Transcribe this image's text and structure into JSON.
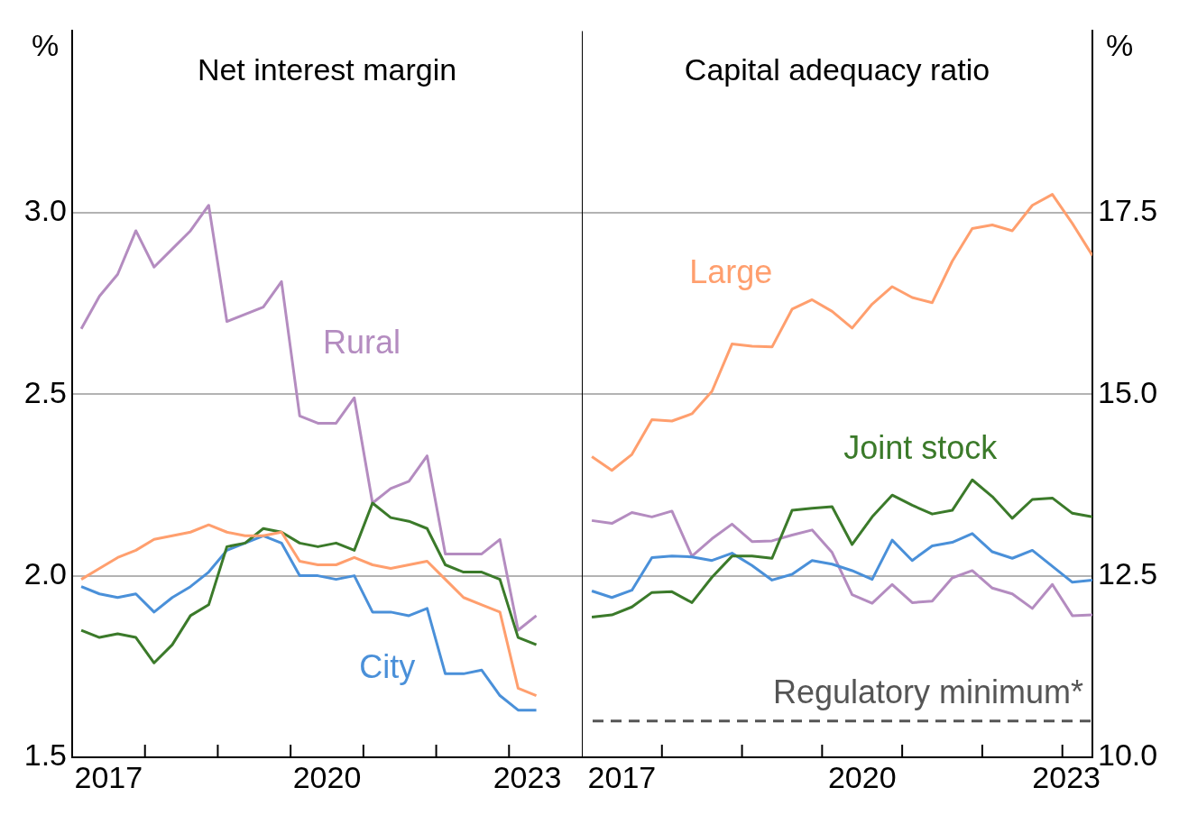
{
  "chart_data": [
    {
      "type": "line",
      "title": "Net interest margin",
      "ylabel": "%",
      "grid": "y",
      "marker": "none",
      "x": [
        2017.125,
        2017.375,
        2017.625,
        2017.875,
        2018.125,
        2018.375,
        2018.625,
        2018.875,
        2019.125,
        2019.375,
        2019.625,
        2019.875,
        2020.125,
        2020.375,
        2020.625,
        2020.875,
        2021.125,
        2021.375,
        2021.625,
        2021.875,
        2022.125,
        2022.375,
        2022.625,
        2022.875,
        2023.125,
        2023.375
      ],
      "xlim": [
        2017,
        2024
      ],
      "xticks": [
        {
          "value": 2017.5,
          "label": "2017"
        },
        {
          "value": 2018,
          "label": null
        },
        {
          "value": 2019,
          "label": null
        },
        {
          "value": 2020,
          "label": null
        },
        {
          "value": 2020.5,
          "label": "2020"
        },
        {
          "value": 2021,
          "label": null
        },
        {
          "value": 2022,
          "label": null
        },
        {
          "value": 2023,
          "label": null
        },
        {
          "value": 2023.25,
          "label": "2023"
        }
      ],
      "ylim": [
        1.5,
        3.5
      ],
      "yticks": [
        1.5,
        {
          "value": 2,
          "label": "2.0"
        },
        2.5,
        {
          "value": 3,
          "label": "3.0"
        }
      ],
      "series": [
        {
          "color": "#ff9f6e",
          "values": [
            1.99,
            2.02,
            2.05,
            2.07,
            2.1,
            2.11,
            2.12,
            2.14,
            2.12,
            2.11,
            2.11,
            2.12,
            2.04,
            2.03,
            2.03,
            2.05,
            2.03,
            2.02,
            2.03,
            2.04,
            1.99,
            1.94,
            1.92,
            1.9,
            1.69,
            1.67
          ]
        },
        {
          "color": "#3b7a2a",
          "values": [
            1.85,
            1.83,
            1.84,
            1.83,
            1.76,
            1.81,
            1.89,
            1.92,
            2.08,
            2.09,
            2.13,
            2.12,
            2.09,
            2.08,
            2.09,
            2.07,
            2.2,
            2.16,
            2.15,
            2.13,
            2.03,
            2.01,
            2.01,
            1.99,
            1.83,
            1.81
          ]
        },
        {
          "name": "City",
          "color": "#4a90d9",
          "values": [
            1.97,
            1.95,
            1.94,
            1.95,
            1.9,
            1.94,
            1.97,
            2.01,
            2.07,
            2.09,
            2.11,
            2.09,
            2.0,
            2.0,
            1.99,
            2.0,
            1.9,
            1.9,
            1.89,
            1.91,
            1.73,
            1.73,
            1.74,
            1.67,
            1.63,
            1.63
          ]
        },
        {
          "name": "Rural",
          "color": "#b48cc0",
          "values": [
            2.68,
            2.77,
            2.83,
            2.95,
            2.85,
            2.9,
            2.95,
            3.02,
            2.7,
            2.72,
            2.74,
            2.81,
            2.44,
            2.42,
            2.42,
            2.49,
            2.2,
            2.24,
            2.26,
            2.33,
            2.06,
            2.06,
            2.06,
            2.1,
            1.85,
            1.89
          ]
        }
      ]
    },
    {
      "type": "line",
      "title": "Capital adequacy ratio",
      "y2label": "%",
      "grid": "y",
      "marker": "none",
      "x": [
        2017.125,
        2017.375,
        2017.625,
        2017.875,
        2018.125,
        2018.375,
        2018.625,
        2018.875,
        2019.125,
        2019.375,
        2019.625,
        2019.875,
        2020.125,
        2020.375,
        2020.625,
        2020.875,
        2021.125,
        2021.375,
        2021.625,
        2021.875,
        2022.125,
        2022.375,
        2022.625,
        2022.875,
        2023.125,
        2023.375
      ],
      "xlim": [
        2017,
        2023.375
      ],
      "xticks": [
        {
          "value": 2017.5,
          "label": "2017"
        },
        {
          "value": 2018,
          "label": null
        },
        {
          "value": 2019,
          "label": null
        },
        {
          "value": 2020,
          "label": null
        },
        {
          "value": 2020.5,
          "label": "2020"
        },
        {
          "value": 2021,
          "label": null
        },
        {
          "value": 2022,
          "label": null
        },
        {
          "value": 2023,
          "label": null
        },
        {
          "value": 2023.05,
          "label": "2023"
        }
      ],
      "y2lim": [
        10,
        20
      ],
      "y2ticks": [
        {
          "value": 10,
          "label": "10.0"
        },
        12.5,
        {
          "value": 15,
          "label": "15.0"
        },
        17.5
      ],
      "ref_lines": [
        {
          "axis": "y2",
          "value": 10.5,
          "label": "Regulatory minimum*",
          "color": "#555555",
          "line_style": "dashed"
        }
      ],
      "series": [
        {
          "name": "Large",
          "axis": "y2",
          "color": "#ff9f6e",
          "values": [
            14.14,
            13.95,
            14.17,
            14.65,
            14.63,
            14.73,
            15.04,
            15.69,
            15.66,
            15.65,
            16.17,
            16.3,
            16.14,
            15.91,
            16.24,
            16.48,
            16.33,
            16.26,
            16.83,
            17.28,
            17.33,
            17.25,
            17.6,
            17.75,
            17.35,
            16.91
          ]
        },
        {
          "name": "Joint stock",
          "axis": "y2",
          "color": "#3b7a2a",
          "values": [
            11.93,
            11.96,
            12.07,
            12.27,
            12.28,
            12.13,
            12.48,
            12.77,
            12.77,
            12.74,
            13.4,
            13.43,
            13.45,
            12.93,
            13.31,
            13.61,
            13.47,
            13.35,
            13.4,
            13.82,
            13.59,
            13.29,
            13.55,
            13.57,
            13.36,
            13.31
          ]
        },
        {
          "axis": "y2",
          "color": "#4a90d9",
          "values": [
            12.29,
            12.2,
            12.3,
            12.75,
            12.77,
            12.76,
            12.71,
            12.81,
            12.64,
            12.44,
            12.52,
            12.71,
            12.66,
            12.57,
            12.45,
            12.99,
            12.71,
            12.91,
            12.96,
            13.08,
            12.83,
            12.74,
            12.85,
            12.63,
            12.41,
            12.44
          ]
        },
        {
          "axis": "y2",
          "color": "#b48cc0",
          "values": [
            13.26,
            13.22,
            13.37,
            13.31,
            13.39,
            12.77,
            13.01,
            13.21,
            12.97,
            12.98,
            13.06,
            13.13,
            12.82,
            12.24,
            12.12,
            12.38,
            12.13,
            12.15,
            12.47,
            12.57,
            12.33,
            12.25,
            12.05,
            12.38,
            11.95,
            11.96
          ]
        }
      ]
    }
  ]
}
